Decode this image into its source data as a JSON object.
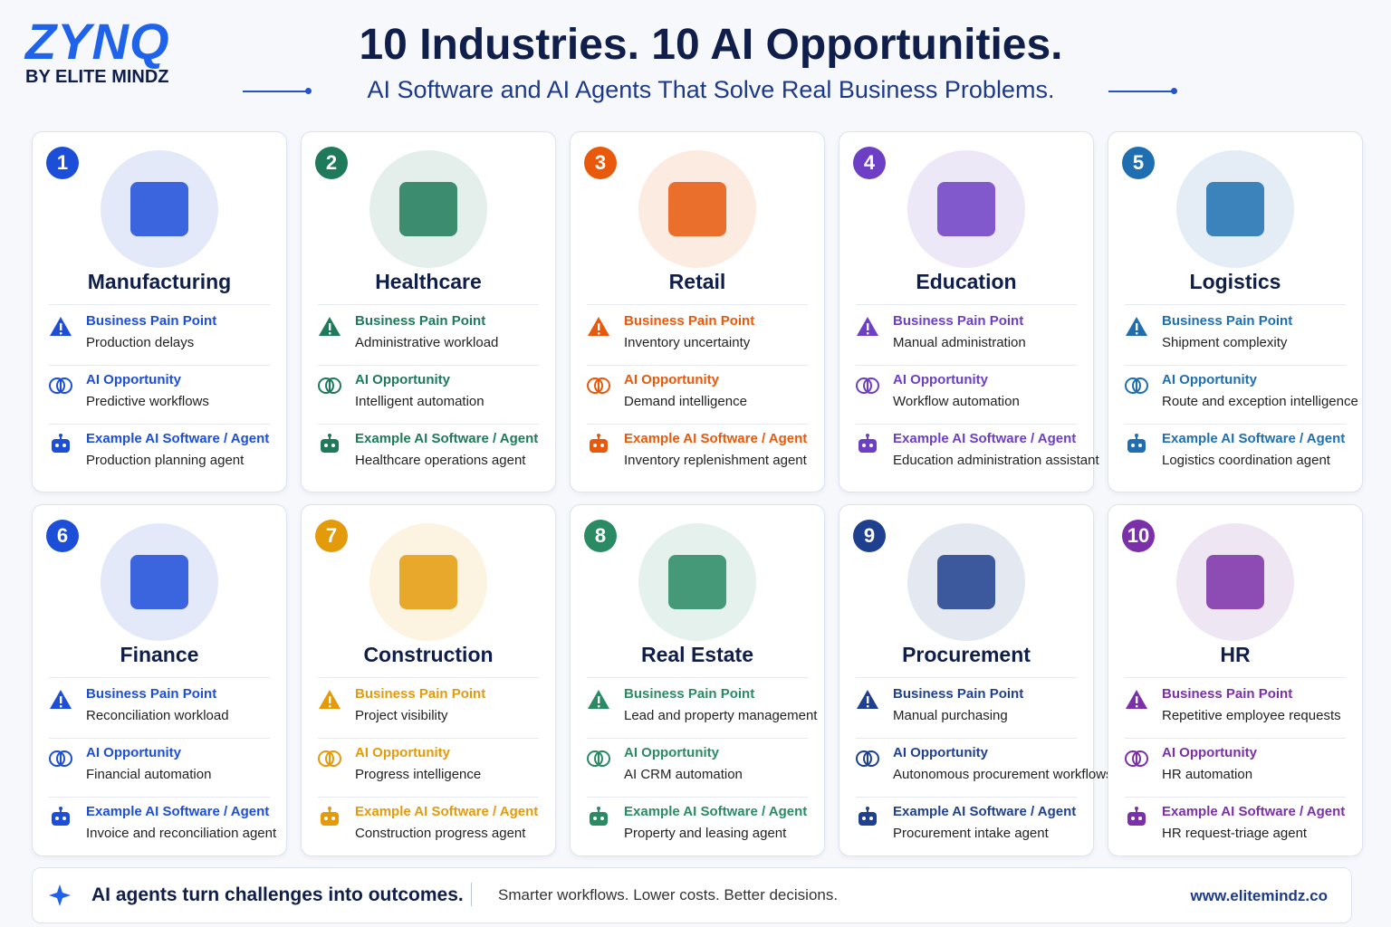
{
  "header": {
    "logo": "ZYNQ",
    "logo_sub": "BY ELITE MINDZ",
    "title": "10 Industries. 10 AI Opportunities.",
    "subtitle": "AI Software and AI Agents That Solve Real Business Problems."
  },
  "cards": [
    {
      "number": "1",
      "title": "Manufacturing",
      "color": "#1d4ed8",
      "sections": [
        {
          "label": "Business Pain Point",
          "text": "Production delays"
        },
        {
          "label": "AI Opportunity",
          "text": "Predictive workflows"
        },
        {
          "label": "Example AI Software / Agent",
          "text": "Production planning agent"
        }
      ]
    },
    {
      "number": "2",
      "title": "Healthcare",
      "color": "#1e7a5a",
      "sections": [
        {
          "label": "Business Pain Point",
          "text": "Administrative workload"
        },
        {
          "label": "AI Opportunity",
          "text": "Intelligent automation"
        },
        {
          "label": "Example AI Software / Agent",
          "text": "Healthcare operations agent"
        }
      ]
    },
    {
      "number": "3",
      "title": "Retail",
      "color": "#e8590c",
      "sections": [
        {
          "label": "Business Pain Point",
          "text": "Inventory uncertainty"
        },
        {
          "label": "AI Opportunity",
          "text": "Demand intelligence"
        },
        {
          "label": "Example AI Software / Agent",
          "text": "Inventory replenishment agent"
        }
      ]
    },
    {
      "number": "4",
      "title": "Education",
      "color": "#6d3fc4",
      "sections": [
        {
          "label": "Business Pain Point",
          "text": "Manual administration"
        },
        {
          "label": "AI Opportunity",
          "text": "Workflow automation"
        },
        {
          "label": "Example AI Software / Agent",
          "text": "Education administration assistant"
        }
      ]
    },
    {
      "number": "5",
      "title": "Logistics",
      "color": "#1f6fb0",
      "sections": [
        {
          "label": "Business Pain Point",
          "text": "Shipment complexity"
        },
        {
          "label": "AI Opportunity",
          "text": "Route and exception intelligence"
        },
        {
          "label": "Example AI Software / Agent",
          "text": "Logistics coordination agent"
        }
      ]
    },
    {
      "number": "6",
      "title": "Finance",
      "color": "#1d4ed8",
      "sections": [
        {
          "label": "Business Pain Point",
          "text": "Reconciliation workload"
        },
        {
          "label": "AI Opportunity",
          "text": "Financial automation"
        },
        {
          "label": "Example AI Software / Agent",
          "text": "Invoice and reconciliation agent"
        }
      ]
    },
    {
      "number": "7",
      "title": "Construction",
      "color": "#e39a0b",
      "sections": [
        {
          "label": "Business Pain Point",
          "text": "Project visibility"
        },
        {
          "label": "AI Opportunity",
          "text": "Progress intelligence"
        },
        {
          "label": "Example AI Software / Agent",
          "text": "Construction progress agent"
        }
      ]
    },
    {
      "number": "8",
      "title": "Real Estate",
      "color": "#2a8a64",
      "sections": [
        {
          "label": "Business Pain Point",
          "text": "Lead and property management"
        },
        {
          "label": "AI Opportunity",
          "text": "AI CRM automation"
        },
        {
          "label": "Example AI Software / Agent",
          "text": "Property and leasing agent"
        }
      ]
    },
    {
      "number": "9",
      "title": "Procurement",
      "color": "#1f3f8f",
      "sections": [
        {
          "label": "Business Pain Point",
          "text": "Manual purchasing"
        },
        {
          "label": "AI Opportunity",
          "text": "Autonomous procurement workflows"
        },
        {
          "label": "Example AI Software / Agent",
          "text": "Procurement intake agent"
        }
      ]
    },
    {
      "number": "10",
      "title": "HR",
      "color": "#7b2fa8",
      "sections": [
        {
          "label": "Business Pain Point",
          "text": "Repetitive employee requests"
        },
        {
          "label": "AI Opportunity",
          "text": "HR automation"
        },
        {
          "label": "Example AI Software / Agent",
          "text": "HR request-triage agent"
        }
      ]
    }
  ],
  "footer": {
    "headline": "AI agents turn challenges into outcomes.",
    "tagline": "Smarter workflows. Lower costs. Better decisions.",
    "url": "www.elitemindz.co"
  }
}
